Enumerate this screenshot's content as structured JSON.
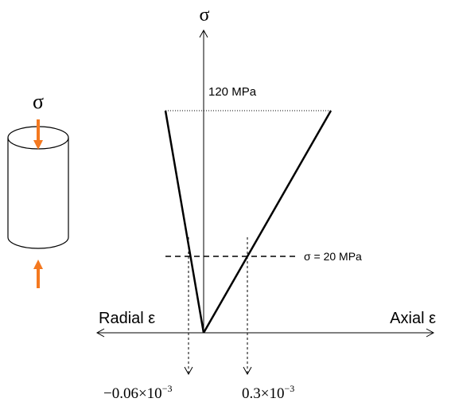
{
  "axis_labels": {
    "vertical": "σ",
    "left": "Radial ε",
    "right": "Axial ε"
  },
  "cylinder_label": "σ",
  "annotations": {
    "peak": "120 MPa",
    "stress_level": "σ = 20 MPa"
  },
  "strain_labels": [
    {
      "value": "−0.06",
      "times": "×10",
      "exponent": "−3"
    },
    {
      "value": "0.3",
      "times": "×10",
      "exponent": "−3"
    }
  ]
}
